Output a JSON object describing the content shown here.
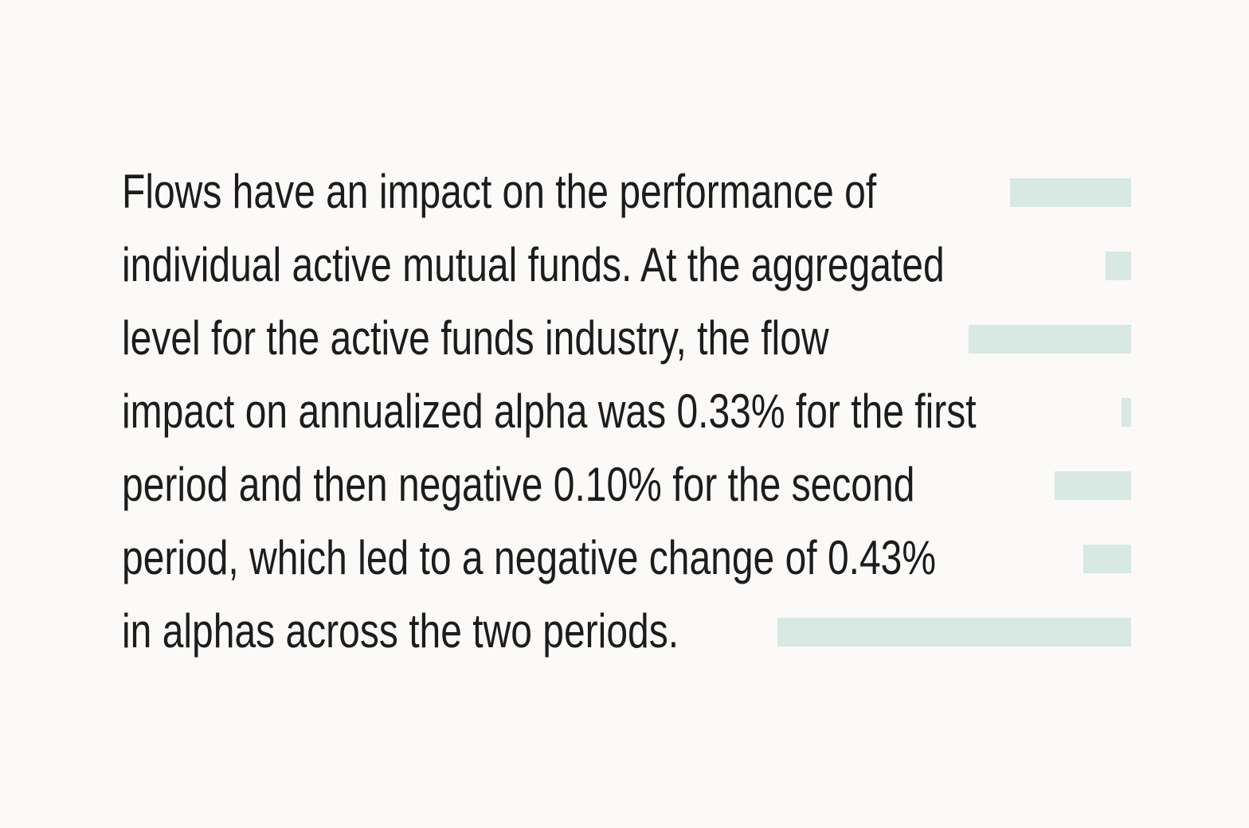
{
  "paragraph": {
    "lines": [
      "Flows have an impact on the performance of",
      "individual active mutual funds. At the aggregated",
      "level for the active funds industry, the flow",
      "impact on annualized alpha was 0.33% for the first",
      "period and then negative 0.10% for the second",
      "period, which led to a negative change of 0.43%",
      "in alphas across the two periods."
    ]
  },
  "colors": {
    "background": "#fbfaf8",
    "text": "#1c1c1c",
    "line_filler": "#d8e8e2"
  }
}
